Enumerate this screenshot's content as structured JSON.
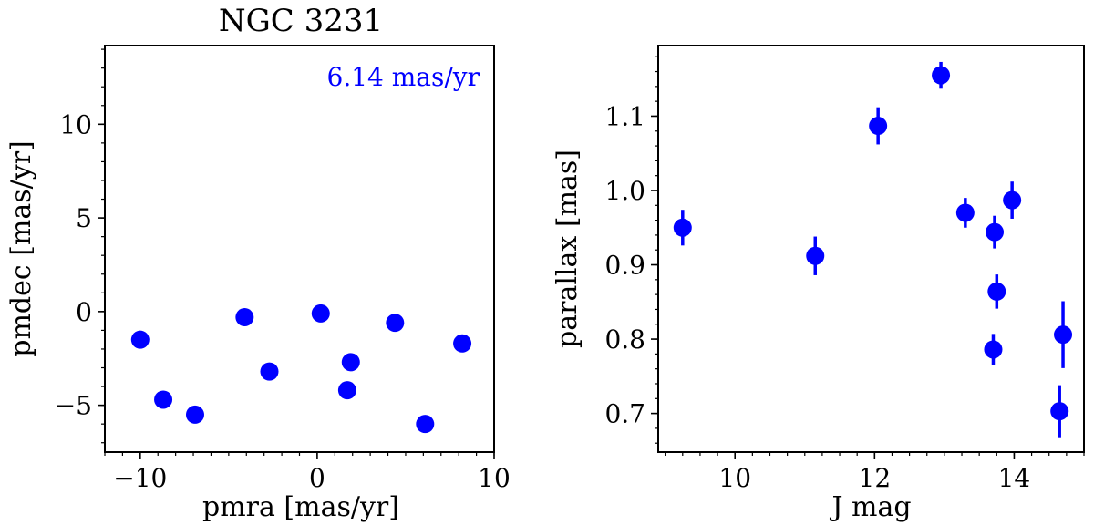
{
  "chart_data": [
    {
      "type": "scatter",
      "title": "NGC 3231",
      "annotation": "6.14 mas/yr",
      "xlabel": "pmra [mas/yr]",
      "ylabel": "pmdec [mas/yr]",
      "xlim": [
        -12,
        10
      ],
      "ylim": [
        -7.5,
        14.2
      ],
      "xticks": [
        -10,
        0,
        10
      ],
      "xtick_labels": [
        "−10",
        "0",
        "10"
      ],
      "yticks": [
        -5,
        0,
        5,
        10
      ],
      "ytick_labels": [
        "−5",
        "0",
        "5",
        "10"
      ],
      "grid": false,
      "marker_color": "#0000ff",
      "series": [
        {
          "x": [
            -10.0,
            -8.7,
            -6.9,
            -4.1,
            -2.7,
            0.2,
            1.7,
            1.9,
            4.4,
            6.1,
            8.2
          ],
          "y": [
            -1.5,
            -4.7,
            -5.5,
            -0.3,
            -3.2,
            -0.1,
            -4.2,
            -2.7,
            -0.6,
            -6.0,
            -1.7
          ]
        }
      ]
    },
    {
      "type": "scatter",
      "title": "",
      "xlabel": "J mag",
      "ylabel": "parallax [mas]",
      "xlim": [
        8.9,
        15.0
      ],
      "ylim": [
        0.648,
        1.195
      ],
      "xticks": [
        10,
        12,
        14
      ],
      "xtick_labels": [
        "10",
        "12",
        "14"
      ],
      "yticks": [
        0.7,
        0.8,
        0.9,
        1.0,
        1.1
      ],
      "ytick_labels": [
        "0.7",
        "0.8",
        "0.9",
        "1.0",
        "1.1"
      ],
      "grid": false,
      "marker_color": "#0000ff",
      "series": [
        {
          "x": [
            9.25,
            11.15,
            12.05,
            12.95,
            13.3,
            13.72,
            13.75,
            13.7,
            13.97,
            14.7,
            14.65
          ],
          "y": [
            0.95,
            0.912,
            1.087,
            1.155,
            0.97,
            0.944,
            0.864,
            0.786,
            0.987,
            0.806,
            0.703
          ],
          "yerr": [
            0.024,
            0.026,
            0.025,
            0.018,
            0.02,
            0.022,
            0.023,
            0.021,
            0.025,
            0.045,
            0.035
          ]
        }
      ]
    }
  ]
}
